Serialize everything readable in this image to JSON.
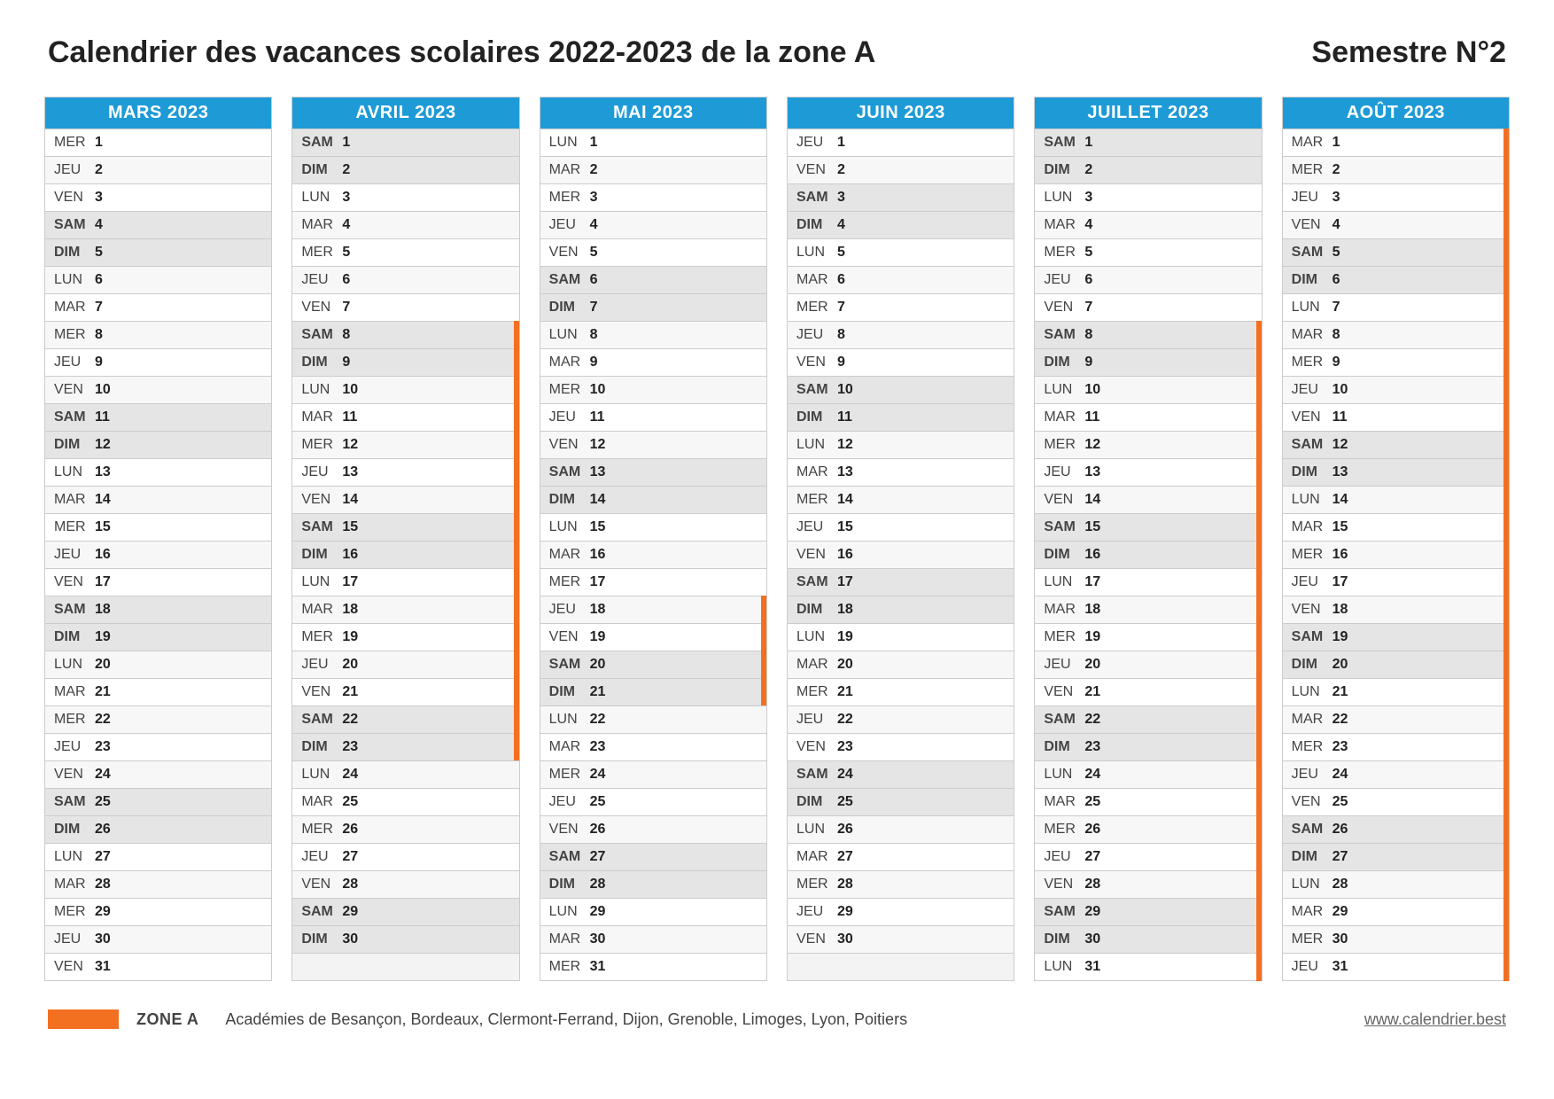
{
  "title": "Calendrier des vacances scolaires 2022-2023 de la zone A",
  "semester": "Semestre N°2",
  "colors": {
    "month_header_bg": "#1e9bd7",
    "month_header_fg": "#ffffff",
    "holiday_marker": "#f37021",
    "weekend_bg": "#e5e5e5",
    "stripe_bg": "#f7f7f7",
    "border": "#cccccc",
    "zone_badge": "#f37021"
  },
  "day_names_fr": [
    "LUN",
    "MAR",
    "MER",
    "JEU",
    "VEN",
    "SAM",
    "DIM"
  ],
  "months": [
    {
      "name": "MARS 2023",
      "days_in_month": 31,
      "first_dow": 2,
      "holiday_ranges": []
    },
    {
      "name": "AVRIL 2023",
      "days_in_month": 30,
      "first_dow": 5,
      "holiday_ranges": [
        [
          8,
          23
        ]
      ]
    },
    {
      "name": "MAI 2023",
      "days_in_month": 31,
      "first_dow": 0,
      "holiday_ranges": [
        [
          18,
          21
        ]
      ]
    },
    {
      "name": "JUIN 2023",
      "days_in_month": 30,
      "first_dow": 3,
      "holiday_ranges": []
    },
    {
      "name": "JUILLET 2023",
      "days_in_month": 31,
      "first_dow": 5,
      "holiday_ranges": [
        [
          8,
          31
        ]
      ]
    },
    {
      "name": "AOÛT 2023",
      "days_in_month": 31,
      "first_dow": 1,
      "holiday_ranges": [
        [
          1,
          31
        ]
      ]
    }
  ],
  "grid_rows": 31,
  "footer": {
    "zone_label": "ZONE A",
    "academies": "Académies de Besançon, Bordeaux, Clermont-Ferrand, Dijon, Grenoble, Limoges, Lyon, Poitiers",
    "site": "www.calendrier.best"
  }
}
